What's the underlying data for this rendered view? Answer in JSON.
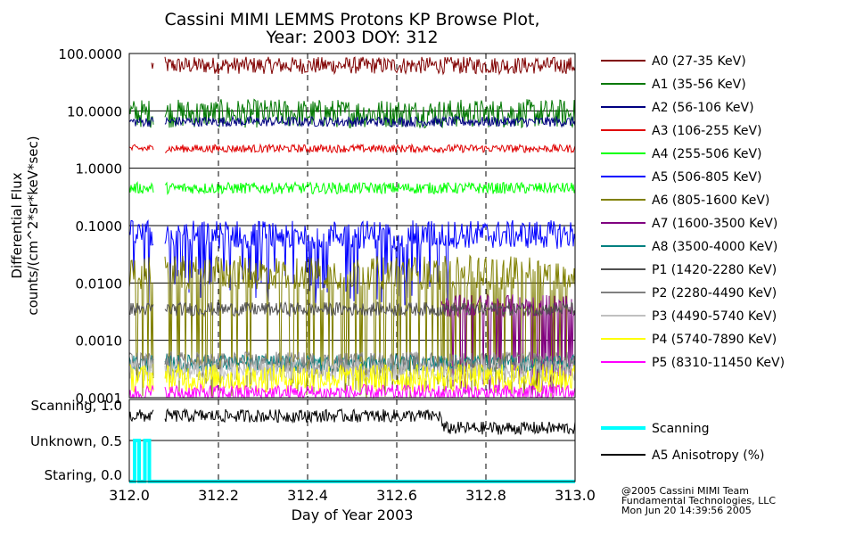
{
  "title": {
    "line1": "Cassini MIMI LEMMS Protons KP Browse Plot,",
    "line2": "Year: 2003 DOY: 312"
  },
  "credits": {
    "line1": "@2005 Cassini MIMI Team",
    "line2": "Fundamental Technologies, LLC",
    "line3": "Mon Jun 20 14:39:56 2005"
  },
  "chart_data": [
    {
      "type": "line",
      "xlabel": "Day of Year 2003",
      "ylabel": [
        "Differential Flux",
        "counts/(cm^2*sr*keV*sec)"
      ],
      "yscale": "log",
      "xlim": [
        312.0,
        313.0
      ],
      "ylim": [
        0.0001,
        100.0
      ],
      "x_ticks": [
        "312.0",
        "312.2",
        "312.4",
        "312.6",
        "312.8",
        "313.0"
      ],
      "y_ticks": [
        {
          "value": 100.0,
          "label": "100.0000"
        },
        {
          "value": 10.0,
          "label": "10.0000"
        },
        {
          "value": 1.0,
          "label": "1.0000"
        },
        {
          "value": 0.1,
          "label": "0.1000"
        },
        {
          "value": 0.01,
          "label": "0.0100"
        },
        {
          "value": 0.001,
          "label": "0.0010"
        },
        {
          "value": 0.0001,
          "label": "0.0001"
        }
      ],
      "grid": true,
      "data_gap": [
        312.055,
        312.08
      ],
      "legend_position": "right",
      "series": [
        {
          "name": "A0 (27-35 KeV)",
          "color": "#800000",
          "level": 62,
          "scatter": 0.15,
          "start": 312.05
        },
        {
          "name": "A1 (35-56 KeV)",
          "color": "#007800",
          "level": 9.0,
          "scatter": 0.25
        },
        {
          "name": "A2 (56-106 KeV)",
          "color": "#000080",
          "level": 6.5,
          "scatter": 0.09
        },
        {
          "name": "A3 (106-255 KeV)",
          "color": "#e00000",
          "level": 2.2,
          "scatter": 0.07
        },
        {
          "name": "A4 (255-506 KeV)",
          "color": "#00ff00",
          "level": 0.45,
          "scatter": 0.1
        },
        {
          "name": "A5 (506-805 KeV)",
          "color": "#0000ff",
          "level": 0.07,
          "scatter": 0.25,
          "dip_to": 0.004,
          "dip_until": 312.72
        },
        {
          "name": "A6 (805-1600 KeV)",
          "color": "#808000",
          "level": 0.015,
          "scatter": 0.3,
          "dip_to": 0.0001
        },
        {
          "name": "A7 (1600-3500 KeV)",
          "color": "#800080",
          "level": 0.004,
          "scatter": 0.2,
          "dip_to": 0.0001,
          "start": 312.7
        },
        {
          "name": "A8 (3500-4000 KeV)",
          "color": "#008080",
          "level": 0.0004,
          "scatter": 0.15
        },
        {
          "name": "P1 (1420-2280 KeV)",
          "color": "#505050",
          "level": 0.0035,
          "scatter": 0.12
        },
        {
          "name": "P2 (2280-4490 KeV)",
          "color": "#808080",
          "level": 0.0004,
          "scatter": 0.2
        },
        {
          "name": "P3 (4490-5740 KeV)",
          "color": "#c0c0c0",
          "level": 0.0003,
          "scatter": 0.2
        },
        {
          "name": "P4 (5740-7890 KeV)",
          "color": "#ffff00",
          "level": 0.00022,
          "scatter": 0.25
        },
        {
          "name": "P5 (8310-11450 KeV)",
          "color": "#ff00ff",
          "level": 0.00012,
          "scatter": 0.15
        }
      ]
    },
    {
      "type": "line",
      "xlabel": "Day of Year 2003",
      "xlim": [
        312.0,
        313.0
      ],
      "ylim": [
        0.0,
        1.0
      ],
      "y_ticks": [
        {
          "value": 1.0,
          "label": "Scanning, 1.0"
        },
        {
          "value": 0.5,
          "label": "Unknown, 0.5"
        },
        {
          "value": 0.0,
          "label": "Staring, 0.0"
        }
      ],
      "grid": true,
      "legend_position": "right",
      "series": [
        {
          "name": "Scanning",
          "color": "#00ffff",
          "x": [
            312.0,
            312.012,
            312.012,
            312.022,
            312.022,
            312.035,
            312.035,
            312.045,
            312.045,
            313.0
          ],
          "y": [
            0.0,
            0.0,
            0.5,
            0.5,
            0.0,
            0.0,
            0.5,
            0.5,
            0.0,
            0.0
          ]
        },
        {
          "name": "A5 Anisotropy (%)",
          "color": "#000000",
          "level": 0.8,
          "scatter": 0.08,
          "level_after_x": 312.7,
          "level_after": 0.65
        }
      ]
    }
  ]
}
